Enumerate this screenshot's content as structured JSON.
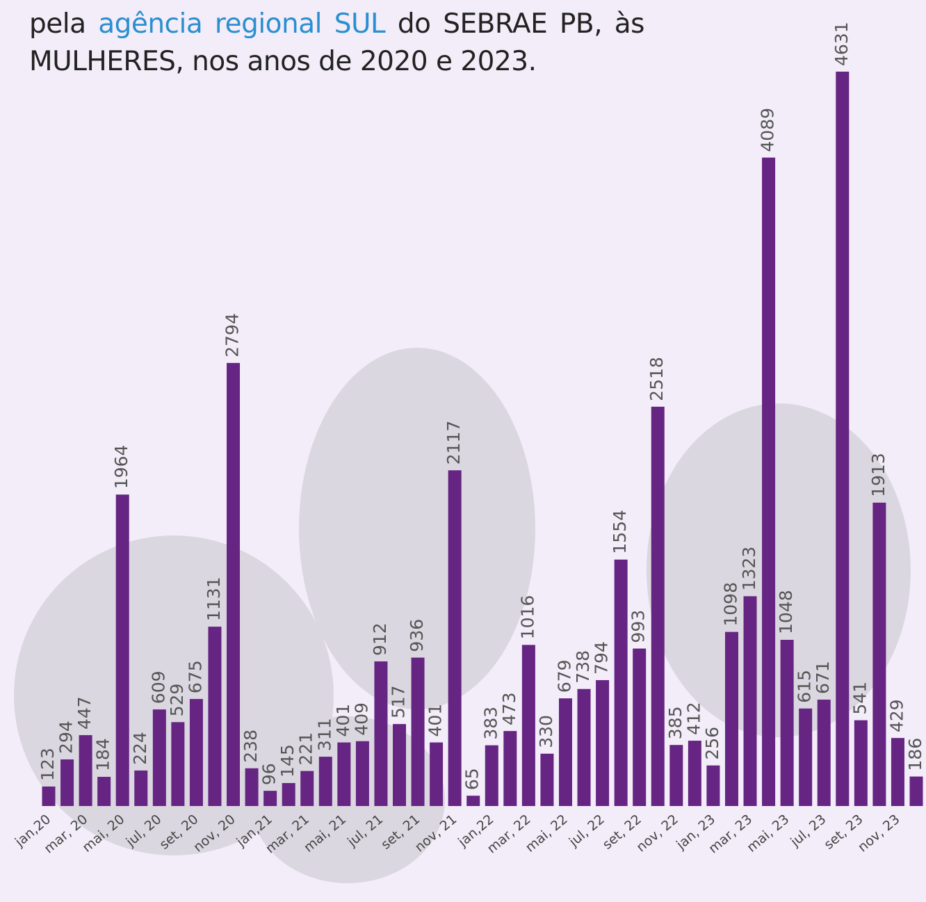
{
  "chart_data": {
    "type": "bar",
    "title": {
      "before": "pela ",
      "highlight": "agência regional SUL",
      "after": " do SEBRAE PB, às MULHERES, nos anos de 2020 e 2023."
    },
    "color": "#662483",
    "categories": [
      "jan,20",
      null,
      "mar, 20",
      null,
      "mai, 20",
      null,
      "jul, 20",
      null,
      "set, 20",
      null,
      "nov, 20",
      null,
      "jan,21",
      null,
      "mar, 21",
      null,
      "mai, 21",
      null,
      "jul, 21",
      null,
      "set, 21",
      null,
      "nov, 21",
      null,
      "jan,22",
      null,
      "mar, 22",
      null,
      "mai, 22",
      null,
      "jul, 22",
      null,
      "set, 22",
      null,
      "nov, 22",
      null,
      "jan, 23",
      null,
      "mar, 23",
      null,
      "mai, 23",
      null,
      "jul, 23",
      null,
      "set, 23",
      null,
      "nov, 23",
      null
    ],
    "values": [
      123,
      294,
      447,
      184,
      1964,
      224,
      609,
      529,
      675,
      1131,
      2794,
      238,
      96,
      145,
      221,
      311,
      401,
      409,
      912,
      517,
      936,
      401,
      2117,
      65,
      383,
      473,
      1016,
      330,
      679,
      738,
      794,
      1554,
      993,
      2518,
      385,
      412,
      256,
      1098,
      1323,
      4089,
      1048,
      615,
      671,
      4631,
      541,
      1913,
      429,
      186
    ]
  }
}
